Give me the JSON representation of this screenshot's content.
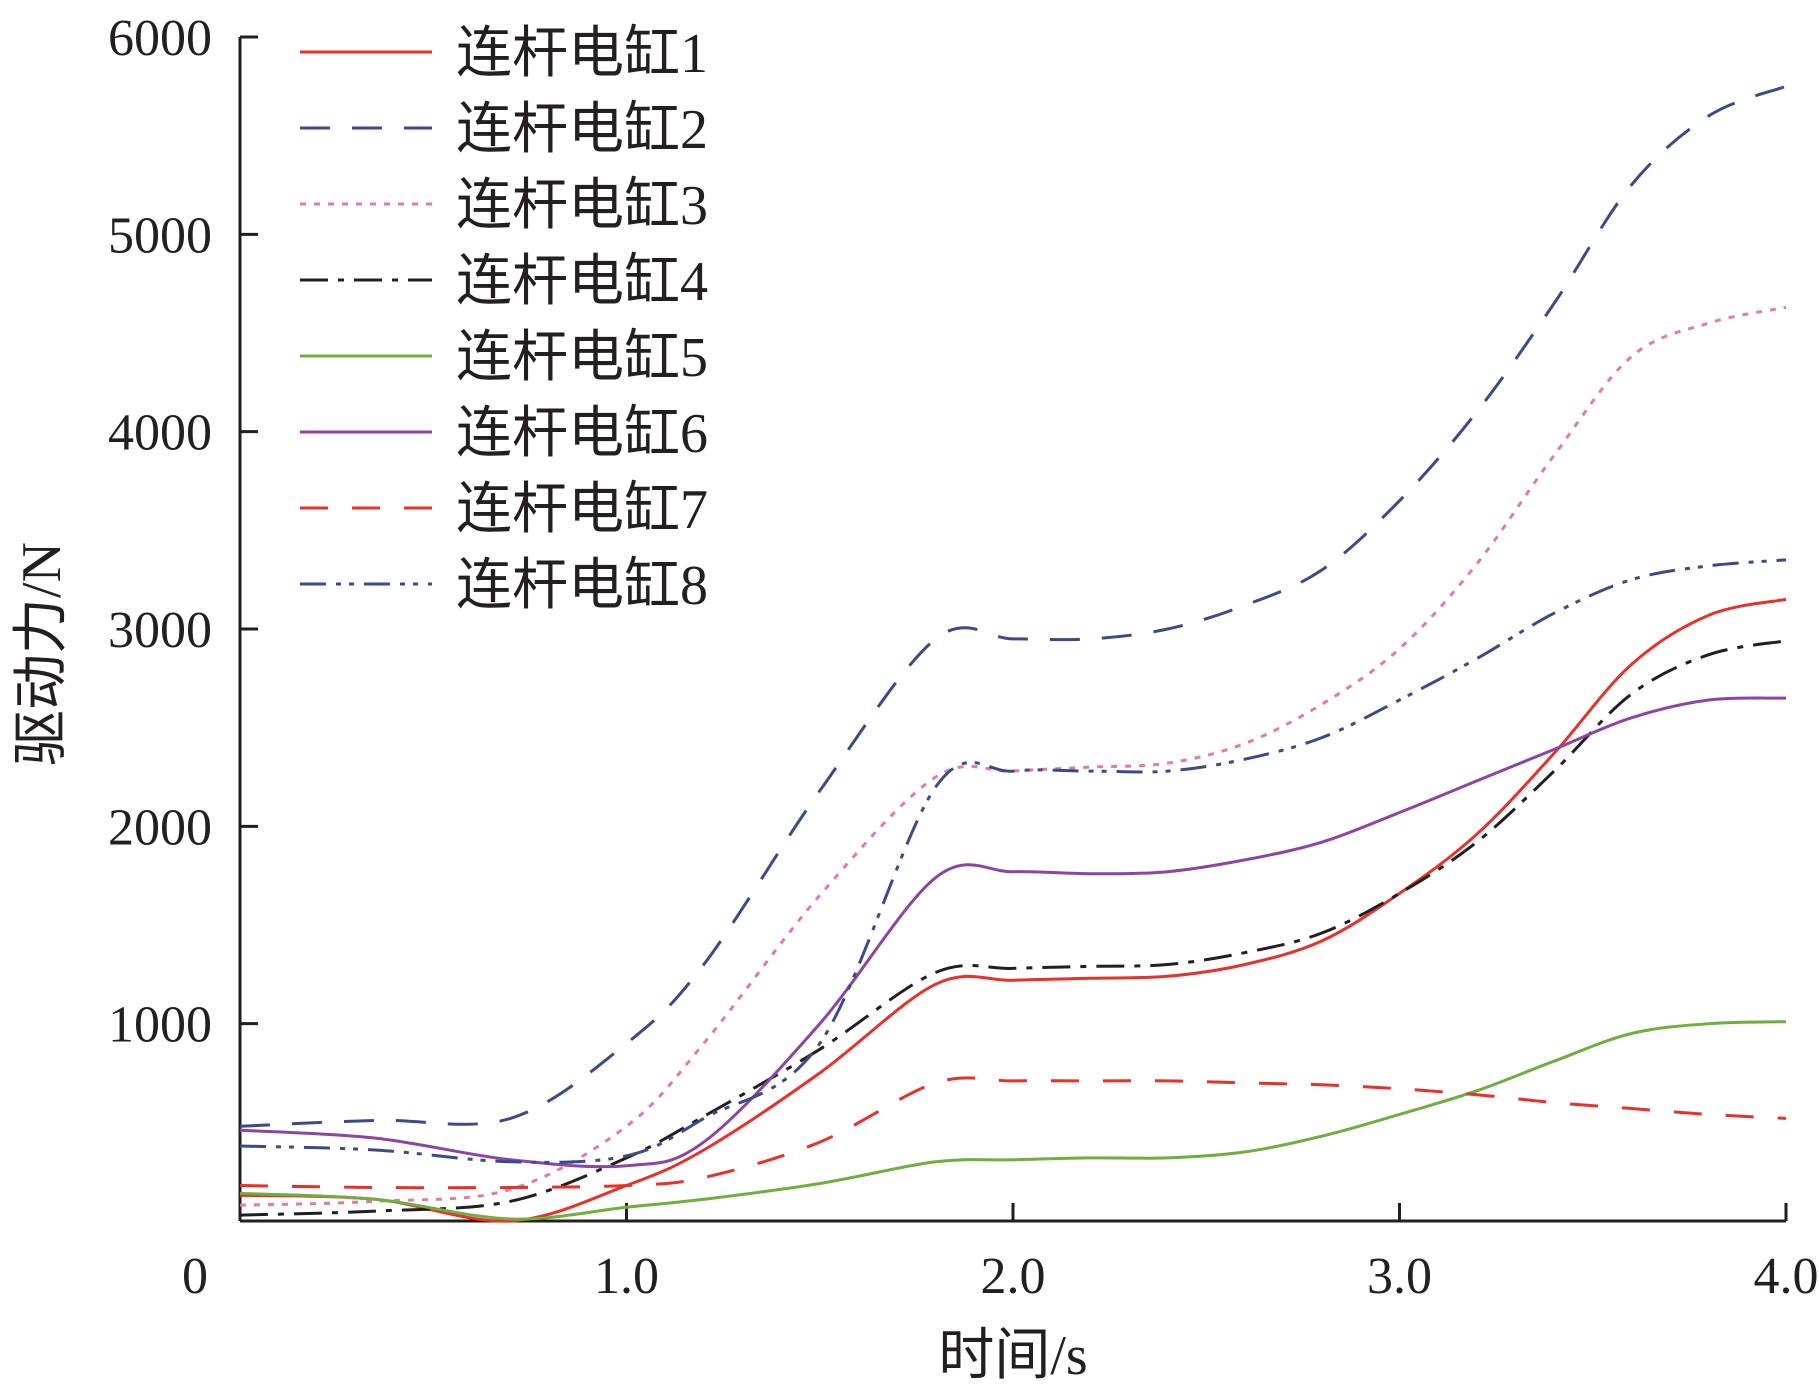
{
  "chart_data": {
    "type": "line",
    "title": "",
    "xlabel": "时间/s",
    "ylabel": "驱动力/N",
    "xlim": [
      0,
      4.0
    ],
    "ylim": [
      0,
      6000
    ],
    "origin_label": "0",
    "x_ticks": [
      1.0,
      2.0,
      3.0,
      4.0
    ],
    "x_tick_labels": [
      "1.0",
      "2.0",
      "3.0",
      "4.0"
    ],
    "y_ticks": [
      1000,
      2000,
      3000,
      4000,
      5000,
      6000
    ],
    "y_tick_labels": [
      "1000",
      "2000",
      "3000",
      "4000",
      "5000",
      "6000"
    ],
    "grid": false,
    "legend_position": "top-left",
    "x": [
      0,
      0.35,
      0.7,
      1.0,
      1.2,
      1.5,
      1.8,
      2.0,
      2.2,
      2.4,
      2.6,
      2.8,
      3.0,
      3.2,
      3.4,
      3.6,
      3.8,
      4.0
    ],
    "series": [
      {
        "name": "连杆电缸1",
        "color": "#e8312a",
        "dash": "solid",
        "values": [
          130,
          110,
          0,
          180,
          360,
          750,
          1200,
          1220,
          1230,
          1240,
          1300,
          1420,
          1660,
          1960,
          2370,
          2820,
          3070,
          3150
        ]
      },
      {
        "name": "连杆电缸2",
        "color": "#3c4a8a",
        "dash": "dash",
        "values": [
          480,
          510,
          520,
          900,
          1300,
          2180,
          2950,
          2950,
          2950,
          3000,
          3120,
          3300,
          3650,
          4100,
          4650,
          5250,
          5600,
          5750
        ]
      },
      {
        "name": "连杆电缸3",
        "color": "#e07ab0",
        "dash": "dot",
        "values": [
          80,
          100,
          160,
          480,
          900,
          1650,
          2250,
          2280,
          2300,
          2320,
          2420,
          2620,
          2900,
          3330,
          3880,
          4380,
          4550,
          4630
        ]
      },
      {
        "name": "连杆电缸4",
        "color": "#231f20",
        "dash": "dashdot",
        "values": [
          30,
          50,
          100,
          320,
          530,
          870,
          1260,
          1280,
          1290,
          1300,
          1360,
          1460,
          1660,
          1920,
          2280,
          2670,
          2870,
          2940
        ]
      },
      {
        "name": "连杆电缸5",
        "color": "#6fae3f",
        "dash": "solid",
        "values": [
          140,
          110,
          10,
          70,
          110,
          190,
          300,
          310,
          320,
          320,
          350,
          430,
          540,
          660,
          810,
          950,
          1000,
          1010
        ]
      },
      {
        "name": "连杆电缸6",
        "color": "#8e44a4",
        "dash": "solid",
        "values": [
          460,
          420,
          310,
          280,
          400,
          1000,
          1740,
          1770,
          1760,
          1770,
          1830,
          1920,
          2070,
          2230,
          2390,
          2550,
          2640,
          2650
        ]
      },
      {
        "name": "连杆电缸7",
        "color": "#e8312a",
        "dash": "longdash",
        "values": [
          180,
          170,
          170,
          180,
          220,
          400,
          700,
          710,
          710,
          710,
          700,
          690,
          670,
          640,
          600,
          570,
          540,
          520
        ]
      },
      {
        "name": "连杆电缸8",
        "color": "#3c4a8a",
        "dash": "dashdotdot",
        "values": [
          380,
          360,
          300,
          330,
          520,
          900,
          2200,
          2280,
          2280,
          2280,
          2340,
          2450,
          2640,
          2850,
          3080,
          3250,
          3320,
          3350
        ]
      }
    ]
  }
}
